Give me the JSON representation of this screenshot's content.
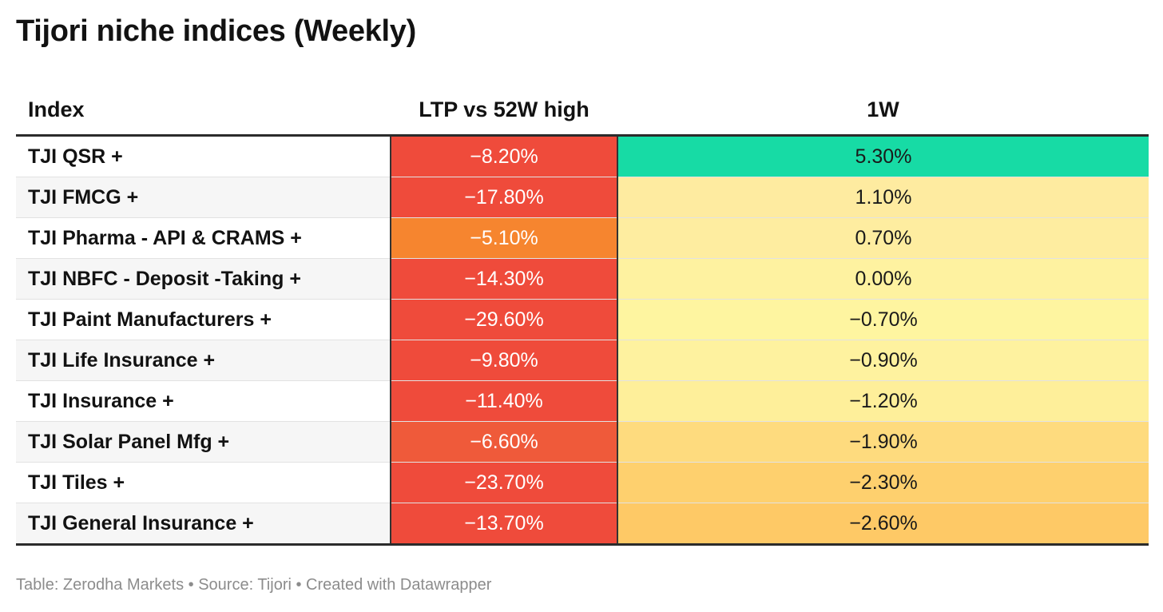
{
  "title": "Tijori niche indices (Weekly)",
  "footer": "Table: Zerodha Markets • Source: Tijori • Created with Datawrapper",
  "chart_data": {
    "type": "table",
    "title": "Tijori niche indices (Weekly)",
    "columns": [
      "Index",
      "LTP vs 52W high",
      "1W"
    ],
    "rows": [
      {
        "index": "TJI QSR +",
        "ltp_vs_52w": "−8.20%",
        "ltp_value": -8.2,
        "ltp_color": "#ef4b3b",
        "w1": "5.30%",
        "w1_value": 5.3,
        "w1_color": "#17dba5"
      },
      {
        "index": "TJI FMCG +",
        "ltp_vs_52w": "−17.80%",
        "ltp_value": -17.8,
        "ltp_color": "#ef4b3b",
        "w1": "1.10%",
        "w1_value": 1.1,
        "w1_color": "#feeba0"
      },
      {
        "index": "TJI Pharma - API & CRAMS +",
        "ltp_vs_52w": "−5.10%",
        "ltp_value": -5.1,
        "ltp_color": "#f6852f",
        "w1": "0.70%",
        "w1_value": 0.7,
        "w1_color": "#feeda0"
      },
      {
        "index": "TJI NBFC - Deposit -Taking +",
        "ltp_vs_52w": "−14.30%",
        "ltp_value": -14.3,
        "ltp_color": "#ef4b3b",
        "w1": "0.00%",
        "w1_value": 0.0,
        "w1_color": "#fef2a0"
      },
      {
        "index": "TJI Paint Manufacturers +",
        "ltp_vs_52w": "−29.60%",
        "ltp_value": -29.6,
        "ltp_color": "#ef4b3b",
        "w1": "−0.70%",
        "w1_value": -0.7,
        "w1_color": "#fef5a0"
      },
      {
        "index": "TJI Life Insurance +",
        "ltp_vs_52w": "−9.80%",
        "ltp_value": -9.8,
        "ltp_color": "#ef4b3b",
        "w1": "−0.90%",
        "w1_value": -0.9,
        "w1_color": "#fef29f"
      },
      {
        "index": "TJI Insurance +",
        "ltp_vs_52w": "−11.40%",
        "ltp_value": -11.4,
        "ltp_color": "#ef4b3b",
        "w1": "−1.20%",
        "w1_value": -1.2,
        "w1_color": "#feef9a"
      },
      {
        "index": "TJI Solar Panel Mfg +",
        "ltp_vs_52w": "−6.60%",
        "ltp_value": -6.6,
        "ltp_color": "#ef5a3a",
        "w1": "−1.90%",
        "w1_value": -1.9,
        "w1_color": "#fedb7e"
      },
      {
        "index": "TJI Tiles +",
        "ltp_vs_52w": "−23.70%",
        "ltp_value": -23.7,
        "ltp_color": "#ef4b3b",
        "w1": "−2.30%",
        "w1_value": -2.3,
        "w1_color": "#fed06e"
      },
      {
        "index": "TJI General Insurance +",
        "ltp_vs_52w": "−13.70%",
        "ltp_value": -13.7,
        "ltp_color": "#ef4b3b",
        "w1": "−2.60%",
        "w1_value": -2.6,
        "w1_color": "#fec966"
      }
    ]
  }
}
